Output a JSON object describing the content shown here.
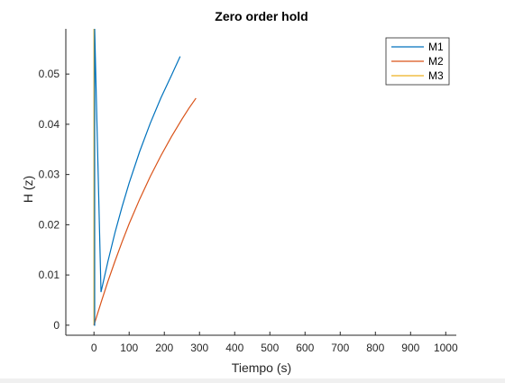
{
  "chart_data": {
    "type": "line",
    "title": "Zero order hold",
    "xlabel": "Tiempo (s)",
    "ylabel": "H (z)",
    "xlim": [
      -80,
      1030
    ],
    "ylim": [
      -0.002,
      0.059
    ],
    "xticks": [
      0,
      100,
      200,
      300,
      400,
      500,
      600,
      700,
      800,
      900,
      1000
    ],
    "xtick_labels": [
      "0",
      "100",
      "200",
      "300",
      "400",
      "500",
      "600",
      "700",
      "800",
      "900",
      "1000"
    ],
    "yticks": [
      0,
      0.01,
      0.02,
      0.03,
      0.04,
      0.05
    ],
    "ytick_labels": [
      "0",
      "0.01",
      "0.02",
      "0.03",
      "0.04",
      "0.05"
    ],
    "grid": false,
    "legend_position": "top-right",
    "series": [
      {
        "name": "M1",
        "color": "#0072BD",
        "x": [
          0,
          2,
          2,
          20,
          40,
          60,
          80,
          100,
          130,
          160,
          190,
          220,
          245
        ],
        "y": [
          0,
          0,
          0.059,
          0.0066,
          0.0128,
          0.0185,
          0.0236,
          0.0283,
          0.0346,
          0.0402,
          0.0452,
          0.0497,
          0.0535
        ]
      },
      {
        "name": "M2",
        "color": "#D95319",
        "x": [
          0,
          20,
          40,
          60,
          80,
          100,
          130,
          160,
          190,
          220,
          250,
          270,
          290
        ],
        "y": [
          0,
          0.0045,
          0.0088,
          0.0128,
          0.0166,
          0.0202,
          0.0251,
          0.0296,
          0.0337,
          0.0375,
          0.041,
          0.0432,
          0.0452
        ]
      },
      {
        "name": "M3",
        "color": "#EDB120",
        "x": [
          0,
          0
        ],
        "y": [
          0,
          0.059
        ]
      }
    ]
  }
}
